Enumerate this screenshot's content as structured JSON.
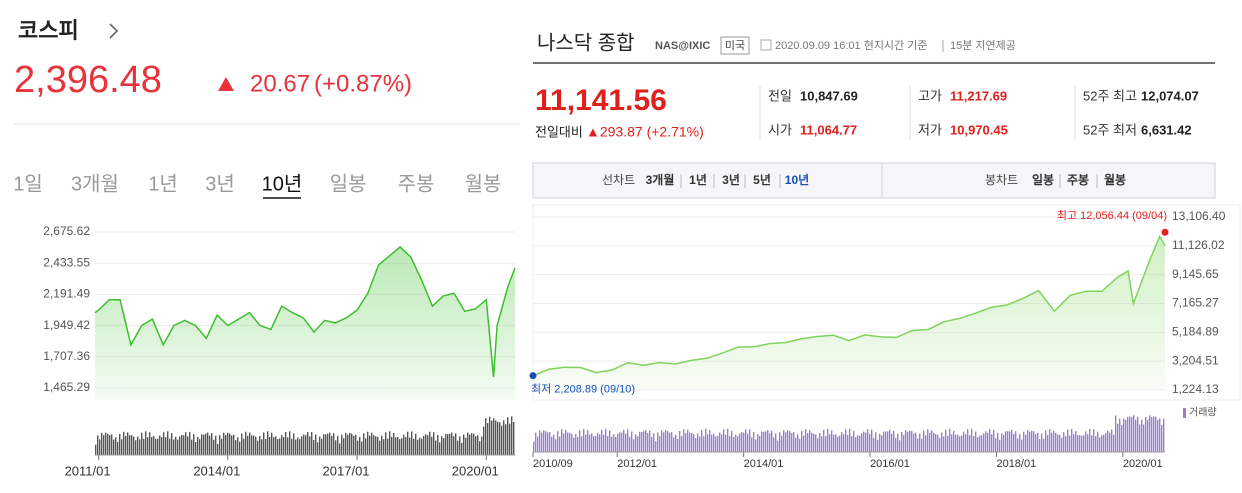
{
  "kospi": {
    "name": "코스피",
    "price": "2,396.48",
    "change": "20.67",
    "change_rate": "(+0.87%)",
    "tabs": [
      "1일",
      "3개월",
      "1년",
      "3년",
      "10년",
      "일봉",
      "주봉",
      "월봉"
    ],
    "active_tab": 4
  },
  "nasdaq": {
    "name": "나스닥 종합",
    "code": "NAS@IXIC",
    "country": "미국",
    "timestamp": "2020.09.09 16:01 현지시간 기준",
    "delay": "15분 지연제공",
    "price": "11,141.56",
    "change_label": "전일대비",
    "change": "▲293.87 (+2.71%)",
    "stats": [
      {
        "label": "전일",
        "value": "10,847.69",
        "color": "#222222"
      },
      {
        "label": "고가",
        "value": "11,217.69",
        "color": "#e0201c"
      },
      {
        "label": "52주 최고",
        "value": "12,074.07",
        "color": "#222222"
      },
      {
        "label": "시가",
        "value": "11,064.77",
        "color": "#e0201c"
      },
      {
        "label": "저가",
        "value": "10,970.45",
        "color": "#e0201c"
      },
      {
        "label": "52주 최저",
        "value": "6,631.42",
        "color": "#222222"
      }
    ],
    "line_tabs_label": "선차트",
    "line_tabs": [
      "3개월",
      "1년",
      "3년",
      "5년",
      "10년"
    ],
    "active_line_tab": 4,
    "candle_tabs_label": "봉차트",
    "candle_tabs": [
      "일봉",
      "주봉",
      "월봉"
    ],
    "volume_label": "거래량"
  },
  "chart_data": [
    {
      "type": "line",
      "color": "#3cbf2c",
      "grid": true,
      "x": [
        "2010/12",
        "2011/01",
        "2011/04",
        "2011/07",
        "2011/10",
        "2012/01",
        "2012/04",
        "2012/07",
        "2012/10",
        "2013/01",
        "2013/04",
        "2013/07",
        "2013/10",
        "2014/01",
        "2014/04",
        "2014/07",
        "2014/10",
        "2015/01",
        "2015/04",
        "2015/07",
        "2015/10",
        "2016/01",
        "2016/04",
        "2016/07",
        "2016/10",
        "2017/01",
        "2017/04",
        "2017/07",
        "2017/10",
        "2018/01",
        "2018/04",
        "2018/07",
        "2018/10",
        "2019/01",
        "2019/04",
        "2019/07",
        "2019/10",
        "2020/01",
        "2020/03",
        "2020/04",
        "2020/07",
        "2020/09"
      ],
      "values": [
        2050,
        2070,
        2150,
        2150,
        1800,
        1950,
        2000,
        1800,
        1950,
        1990,
        1950,
        1850,
        2030,
        1950,
        2000,
        2050,
        1950,
        1920,
        2100,
        2050,
        2010,
        1900,
        1990,
        1970,
        2010,
        2070,
        2200,
        2420,
        2490,
        2560,
        2480,
        2300,
        2100,
        2180,
        2200,
        2060,
        2080,
        2150,
        1550,
        1950,
        2250,
        2396.48
      ],
      "xlim": [
        "2010/12",
        "2020/09"
      ],
      "xticks": [
        "2011/01",
        "2014/01",
        "2017/01",
        "2020/01"
      ],
      "ylim": [
        1372.2,
        2768.7
      ],
      "yticks": [
        {
          "value": 1465.29,
          "label": "1,465.29"
        },
        {
          "value": 1707.36,
          "label": "1,707.36"
        },
        {
          "value": 1949.42,
          "label": "1,949.42"
        },
        {
          "value": 2191.49,
          "label": "2,191.49"
        },
        {
          "value": 2433.55,
          "label": "2,433.55"
        },
        {
          "value": 2675.62,
          "label": "2,675.62"
        }
      ]
    },
    {
      "type": "line",
      "color": "#7fd35a",
      "grid": true,
      "x": [
        "2010/09",
        "2010/12",
        "2011/03",
        "2011/06",
        "2011/09",
        "2011/12",
        "2012/03",
        "2012/06",
        "2012/09",
        "2012/12",
        "2013/03",
        "2013/06",
        "2013/09",
        "2013/12",
        "2014/03",
        "2014/06",
        "2014/09",
        "2014/12",
        "2015/03",
        "2015/06",
        "2015/09",
        "2015/12",
        "2016/03",
        "2016/06",
        "2016/09",
        "2016/12",
        "2017/03",
        "2017/06",
        "2017/09",
        "2017/12",
        "2018/03",
        "2018/06",
        "2018/09",
        "2018/12",
        "2019/03",
        "2019/06",
        "2019/09",
        "2019/12",
        "2020/02",
        "2020/03",
        "2020/06",
        "2020/08",
        "2020/09"
      ],
      "values": [
        2208.89,
        2650,
        2780,
        2770,
        2420,
        2600,
        3090,
        2930,
        3110,
        3010,
        3260,
        3400,
        3770,
        4170,
        4200,
        4410,
        4490,
        4740,
        4900,
        4990,
        4620,
        5010,
        4870,
        4840,
        5310,
        5380,
        5910,
        6140,
        6500,
        6900,
        7060,
        7510,
        8050,
        6640,
        7730,
        8010,
        8000,
        8970,
        9400,
        7150,
        10060,
        11775,
        11141.56
      ],
      "xlim": [
        "2010/09",
        "2020/09"
      ],
      "xticks": [
        "2010/09",
        "2012/01",
        "2014/01",
        "2016/01",
        "2018/01",
        "2020/01"
      ],
      "ylim": [
        1224.13,
        13106.4
      ],
      "yticks": [
        {
          "value": 1224.13,
          "label": "1,224.13"
        },
        {
          "value": 3204.51,
          "label": "3,204.51"
        },
        {
          "value": 5184.89,
          "label": "5,184.89"
        },
        {
          "value": 7165.27,
          "label": "7,165.27"
        },
        {
          "value": 9145.65,
          "label": "9,145.65"
        },
        {
          "value": 11126.02,
          "label": "11,126.02"
        },
        {
          "value": 13106.4,
          "label": "13,106.40"
        }
      ],
      "annotations": [
        {
          "label": "최고 12,056.44 (09/04)",
          "value": 12056.44,
          "x": "2020/09",
          "color": "#e0201c"
        },
        {
          "label": "최저 2,208.89 (09/10)",
          "value": 2208.89,
          "x": "2010/09",
          "color": "#1c4fb4"
        }
      ]
    }
  ]
}
